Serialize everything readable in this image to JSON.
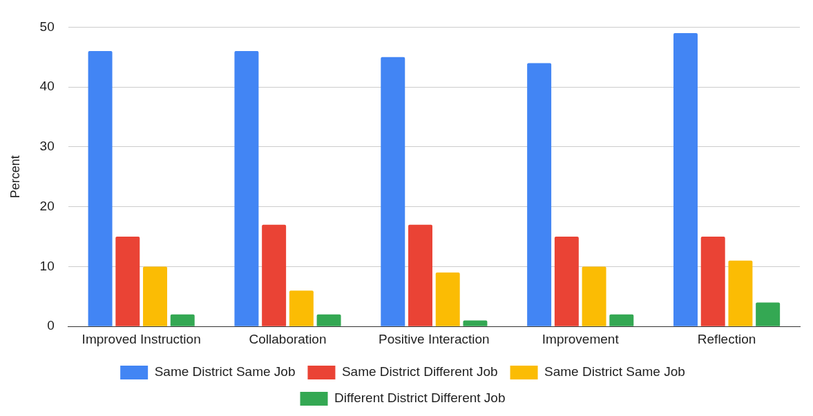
{
  "chart_data": {
    "type": "bar",
    "ylabel": "Percent",
    "categories": [
      "Improved Instruction",
      "Collaboration",
      "Positive Interaction",
      "Improvement",
      "Reflection"
    ],
    "series": [
      {
        "name": "Same District Same Job",
        "color": "#4285f4",
        "values": [
          46,
          46,
          45,
          44,
          49
        ]
      },
      {
        "name": "Same District Different Job",
        "color": "#ea4335",
        "values": [
          15,
          17,
          17,
          15,
          15
        ]
      },
      {
        "name": "Same District Same Job",
        "color": "#fbbc04",
        "values": [
          10,
          6,
          9,
          10,
          11
        ]
      },
      {
        "name": "Different District Different Job",
        "color": "#34a853",
        "values": [
          2,
          2,
          1,
          2,
          4
        ]
      }
    ],
    "ylim": [
      0,
      50
    ],
    "yticks": [
      0,
      10,
      20,
      30,
      40,
      50
    ],
    "grid": "y",
    "legend": "bottom"
  }
}
